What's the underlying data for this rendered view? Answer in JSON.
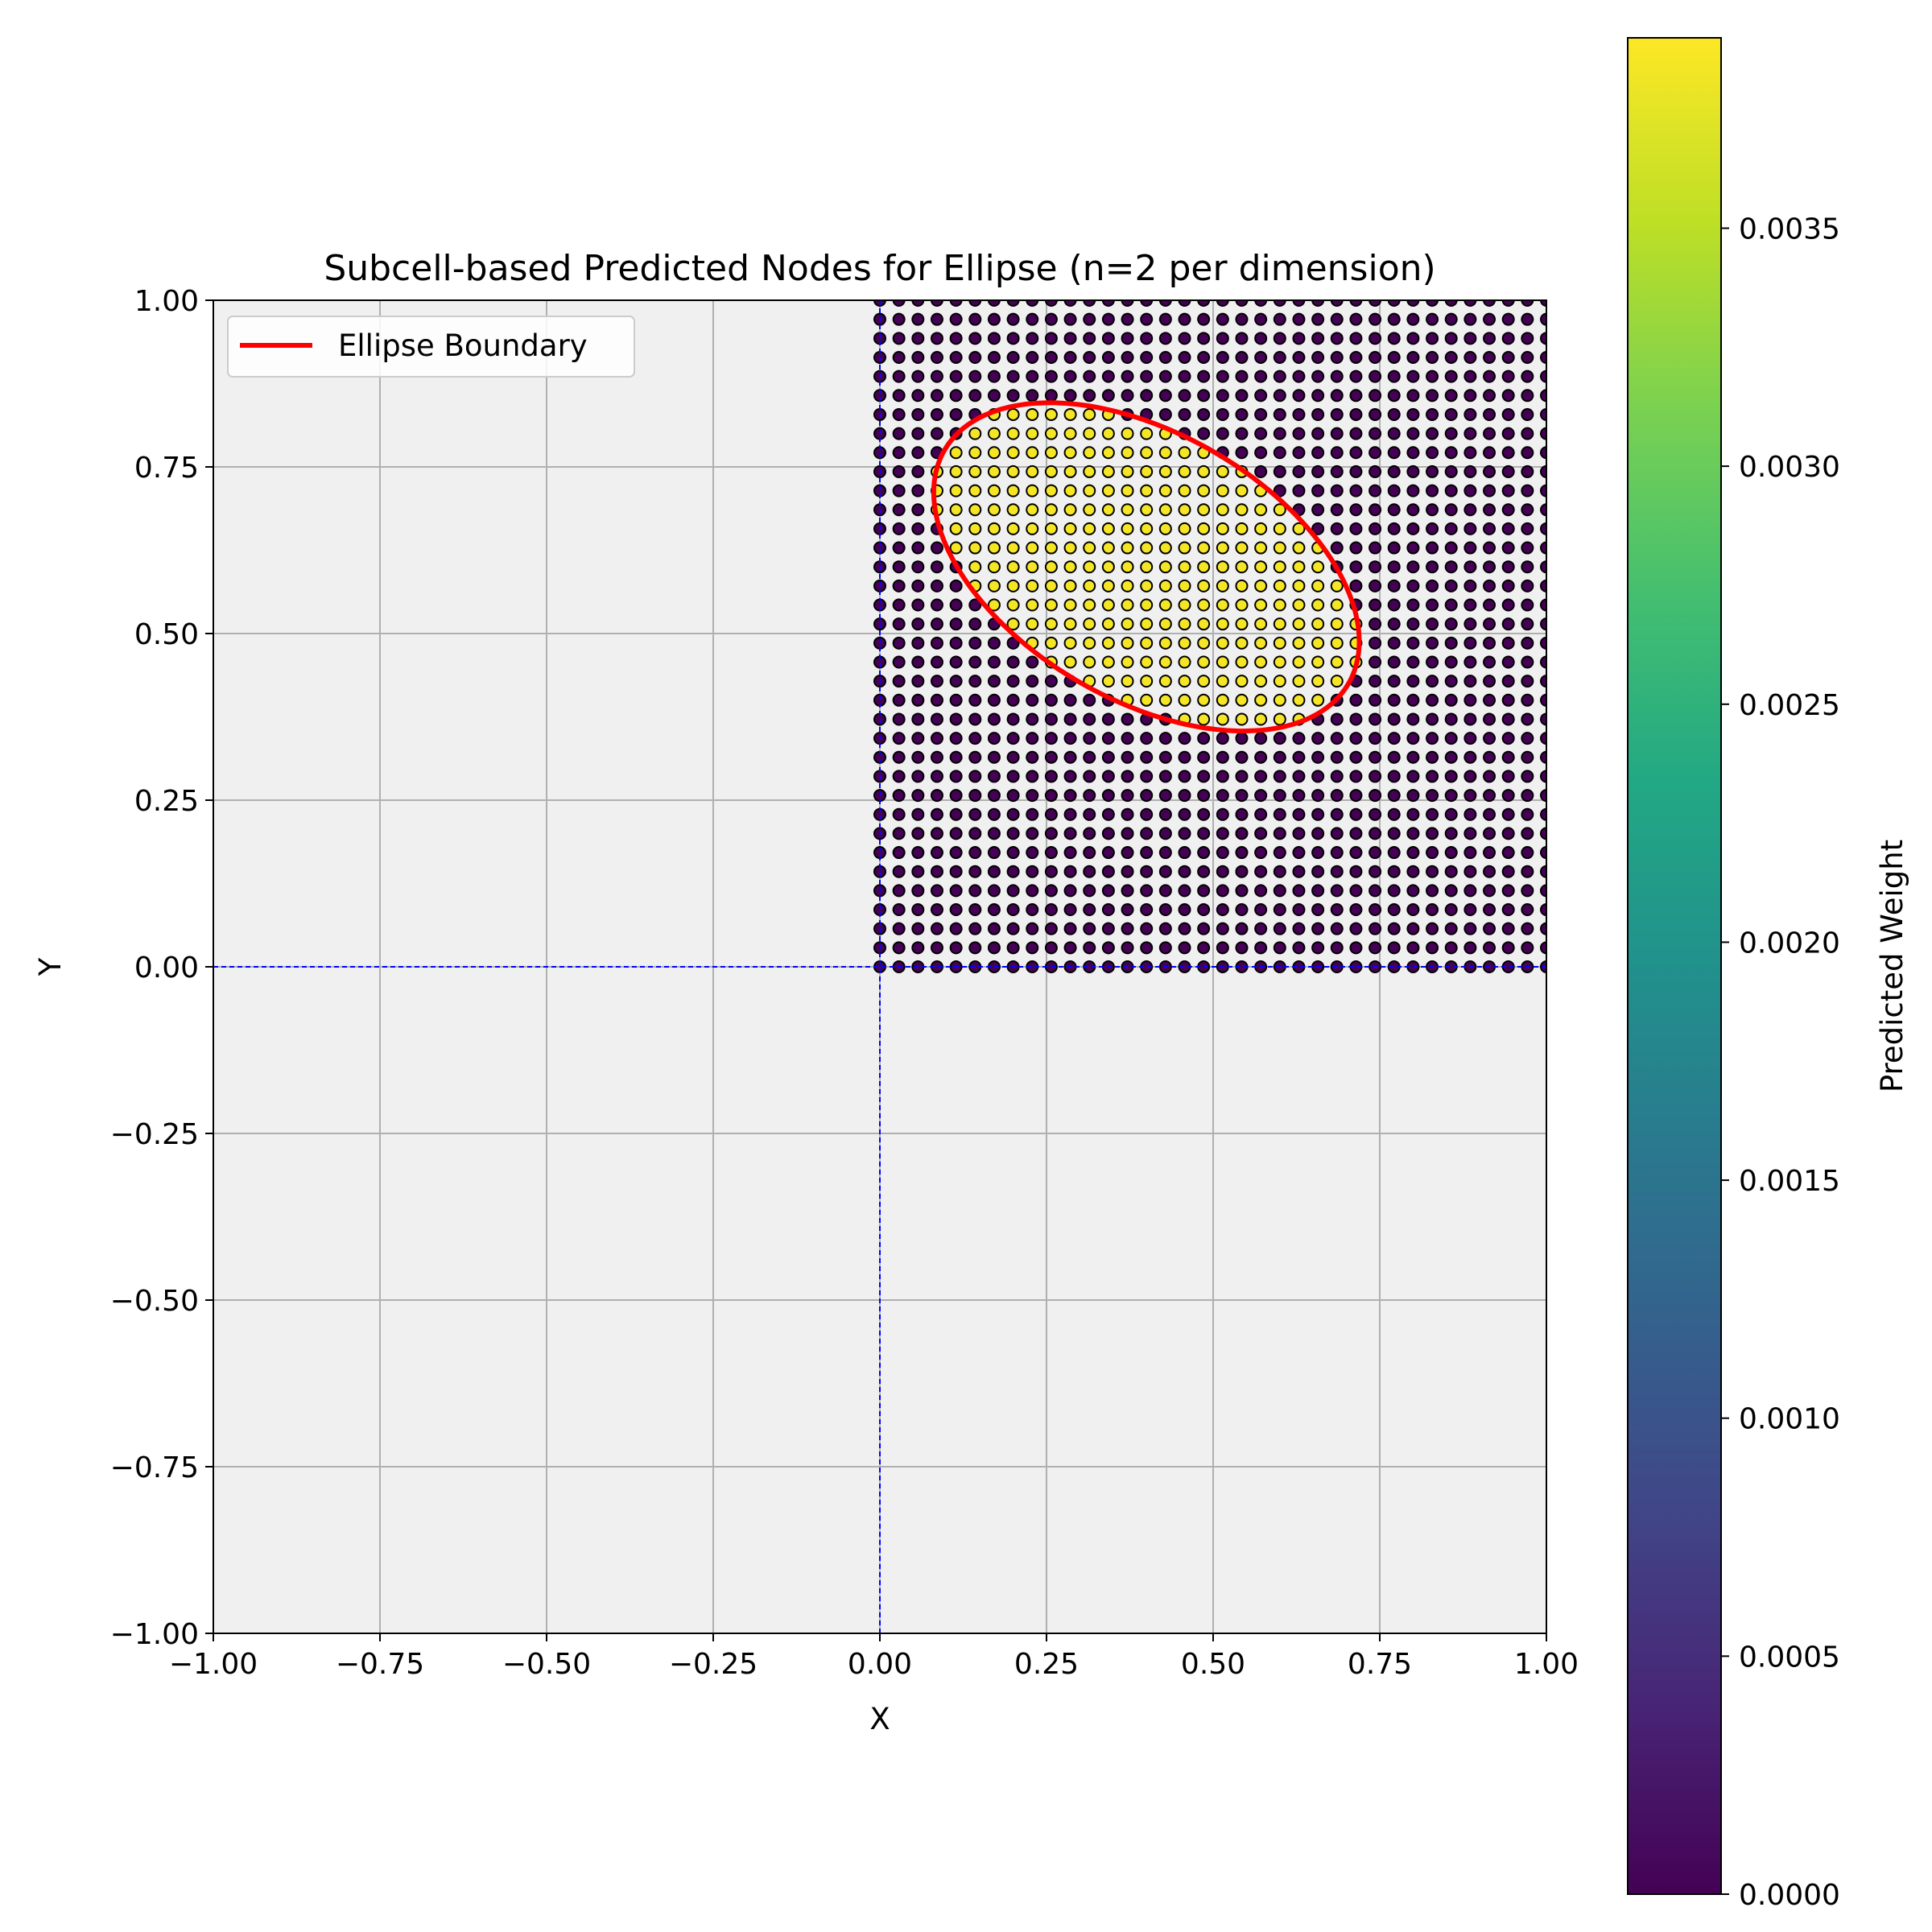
{
  "chart_data": {
    "type": "scatter",
    "title": "Subcell-based Predicted Nodes for Ellipse (n=2 per dimension)",
    "xlabel": "X",
    "ylabel": "Y",
    "xlim": [
      -1.0,
      1.0
    ],
    "ylim": [
      -1.0,
      1.0
    ],
    "xticks": [
      "−1.00",
      "−0.75",
      "−0.50",
      "−0.25",
      "0.00",
      "0.25",
      "0.50",
      "0.75",
      "1.00"
    ],
    "yticks": [
      "−1.00",
      "−0.75",
      "−0.50",
      "−0.25",
      "0.00",
      "0.25",
      "0.50",
      "0.75",
      "1.00"
    ],
    "xtick_values": [
      -1.0,
      -0.75,
      -0.5,
      -0.25,
      0.0,
      0.25,
      0.5,
      0.75,
      1.0
    ],
    "ytick_values": [
      -1.0,
      -0.75,
      -0.5,
      -0.25,
      0.0,
      0.25,
      0.5,
      0.75,
      1.0
    ],
    "grid": true,
    "background_color": "#f0f0f0",
    "legend": {
      "placement": "top-left",
      "entries": [
        "Ellipse Boundary"
      ]
    },
    "nodes": {
      "x_range": [
        0.0,
        1.0
      ],
      "y_range": [
        0.0,
        1.0
      ],
      "count_per_axis": 36,
      "weight_inside": 0.00385,
      "weight_outside": 0.0
    },
    "ellipse": {
      "label": "Ellipse Boundary",
      "center": [
        0.4,
        0.6
      ],
      "semi_major": 0.35,
      "semi_minor": 0.2,
      "angle_deg": -30,
      "color": "#ff0000"
    },
    "reference_lines": {
      "x": 0.0,
      "y": 0.0,
      "color": "#0000ff",
      "style": "dashed"
    },
    "colorbar": {
      "label": "Predicted Weight",
      "min": 0.0,
      "max": 0.0039,
      "colormap": "viridis",
      "ticks": [
        "0.0000",
        "0.0005",
        "0.0010",
        "0.0015",
        "0.0020",
        "0.0025",
        "0.0030",
        "0.0035"
      ],
      "tick_values": [
        0.0,
        0.0005,
        0.001,
        0.0015,
        0.002,
        0.0025,
        0.003,
        0.0035
      ]
    }
  }
}
